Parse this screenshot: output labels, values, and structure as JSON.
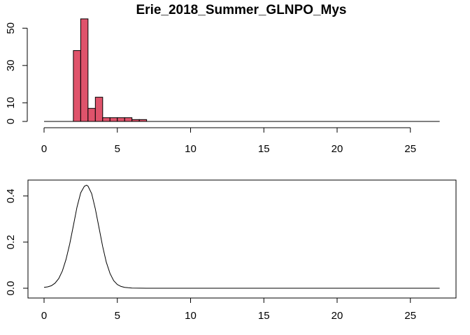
{
  "chart_data": [
    {
      "type": "bar",
      "title": "Erie_2018_Summer_GLNPO_Mys",
      "xlabel": "",
      "ylabel": "",
      "bin_width": 0.5,
      "bins": [
        {
          "x0": 2.0,
          "x1": 2.5,
          "count": 38
        },
        {
          "x0": 2.5,
          "x1": 3.0,
          "count": 55
        },
        {
          "x0": 3.0,
          "x1": 3.5,
          "count": 7
        },
        {
          "x0": 3.5,
          "x1": 4.0,
          "count": 13
        },
        {
          "x0": 4.0,
          "x1": 4.5,
          "count": 2
        },
        {
          "x0": 4.5,
          "x1": 5.0,
          "count": 2
        },
        {
          "x0": 5.0,
          "x1": 5.5,
          "count": 2
        },
        {
          "x0": 5.5,
          "x1": 6.0,
          "count": 2
        },
        {
          "x0": 6.0,
          "x1": 6.5,
          "count": 1
        },
        {
          "x0": 6.5,
          "x1": 7.0,
          "count": 1
        }
      ],
      "baseline_x_range": [
        0,
        27
      ],
      "xlim": [
        0,
        27
      ],
      "ylim": [
        0,
        55
      ],
      "x_ticks": [
        0,
        5,
        10,
        15,
        20,
        25
      ],
      "x_tick_labels": [
        "0",
        "5",
        "10",
        "15",
        "20",
        "25"
      ],
      "y_ticks": [
        0,
        10,
        30,
        50
      ],
      "y_tick_labels": [
        "0",
        "10",
        "30",
        "50"
      ],
      "bar_color": "#DF536B",
      "grid": false,
      "box": false
    },
    {
      "type": "line",
      "title": "",
      "xlabel": "",
      "ylabel": "",
      "x": [
        0,
        0.25,
        0.5,
        0.75,
        1.0,
        1.25,
        1.5,
        1.75,
        2.0,
        2.25,
        2.5,
        2.75,
        2.9,
        3.0,
        3.25,
        3.5,
        3.75,
        4.0,
        4.25,
        4.5,
        4.75,
        5.0,
        5.25,
        5.5,
        5.75,
        6.0,
        7,
        8,
        10,
        15,
        20,
        25,
        27
      ],
      "y": [
        0.004,
        0.006,
        0.011,
        0.022,
        0.042,
        0.075,
        0.125,
        0.192,
        0.271,
        0.352,
        0.414,
        0.442,
        0.447,
        0.443,
        0.41,
        0.344,
        0.262,
        0.181,
        0.113,
        0.064,
        0.033,
        0.016,
        0.008,
        0.004,
        0.002,
        0.001,
        0.0,
        0.0,
        0.0,
        0.0,
        0.0,
        0.0,
        0.0
      ],
      "xlim": [
        0,
        27
      ],
      "ylim": [
        0,
        0.447
      ],
      "x_ticks": [
        0,
        5,
        10,
        15,
        20,
        25
      ],
      "x_tick_labels": [
        "0",
        "5",
        "10",
        "15",
        "20",
        "25"
      ],
      "y_ticks": [
        0.0,
        0.2,
        0.4
      ],
      "y_tick_labels": [
        "0.0",
        "0.2",
        "0.4"
      ],
      "line_color": "#000000",
      "grid": false,
      "box": true
    }
  ]
}
